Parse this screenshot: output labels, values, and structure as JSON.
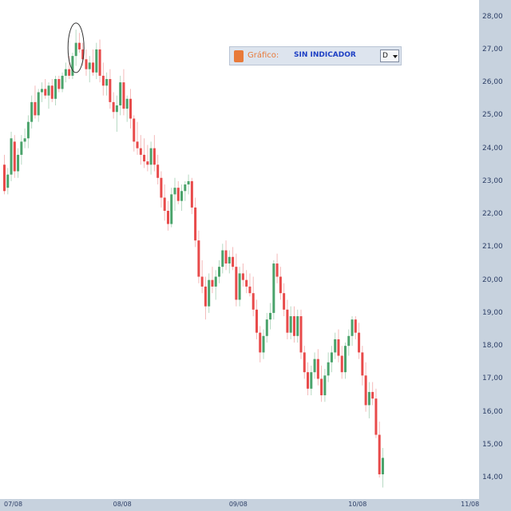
{
  "toolbar": {
    "label": "Gráfico:",
    "indicator": "SIN INDICADOR",
    "selected": "D"
  },
  "chart_data": {
    "type": "candlestick",
    "title": "",
    "xlabel": "",
    "ylabel": "",
    "ylim": [
      13.35,
      28.5
    ],
    "y_ticks": [
      "28,00",
      "27,00",
      "26,00",
      "25,00",
      "24,00",
      "23,00",
      "22,00",
      "21,00",
      "20,00",
      "19,00",
      "18,00",
      "17,00",
      "16,00",
      "15,00",
      "14,00"
    ],
    "x_ticks": [
      {
        "label": "07/08",
        "index": 0
      },
      {
        "label": "08/08",
        "index": 32
      },
      {
        "label": "09/08",
        "index": 66
      },
      {
        "label": "10/08",
        "index": 101
      },
      {
        "label": "11/08",
        "index": 134
      }
    ],
    "up_color": "#4aa36b",
    "down_color": "#e84a4a",
    "highlight": {
      "index": 21,
      "shape": "ellipse"
    },
    "candles": [
      [
        23.5,
        23.8,
        22.6,
        22.7
      ],
      [
        22.8,
        23.4,
        22.6,
        23.2
      ],
      [
        23.2,
        24.5,
        23.0,
        24.3
      ],
      [
        24.2,
        24.4,
        23.1,
        23.3
      ],
      [
        23.3,
        24.0,
        23.1,
        23.8
      ],
      [
        23.8,
        24.4,
        23.5,
        24.2
      ],
      [
        24.2,
        24.6,
        24.0,
        24.3
      ],
      [
        24.3,
        25.0,
        24.0,
        24.8
      ],
      [
        24.8,
        25.6,
        24.6,
        25.4
      ],
      [
        25.4,
        25.9,
        24.9,
        25.0
      ],
      [
        25.0,
        25.8,
        24.8,
        25.7
      ],
      [
        25.7,
        26.0,
        25.4,
        25.8
      ],
      [
        25.8,
        26.1,
        25.5,
        25.6
      ],
      [
        25.6,
        26.0,
        25.2,
        25.9
      ],
      [
        25.9,
        26.1,
        25.4,
        25.5
      ],
      [
        25.5,
        26.2,
        25.3,
        26.1
      ],
      [
        26.1,
        26.2,
        25.7,
        25.8
      ],
      [
        25.8,
        26.3,
        25.7,
        26.2
      ],
      [
        26.2,
        26.6,
        26.0,
        26.4
      ],
      [
        26.4,
        26.8,
        26.1,
        26.2
      ],
      [
        26.2,
        26.9,
        26.1,
        26.8
      ],
      [
        26.8,
        27.6,
        26.5,
        27.2
      ],
      [
        27.2,
        27.5,
        26.9,
        27.0
      ],
      [
        27.0,
        27.2,
        26.5,
        26.7
      ],
      [
        26.7,
        27.0,
        26.2,
        26.4
      ],
      [
        26.4,
        26.8,
        26.0,
        26.6
      ],
      [
        26.6,
        27.0,
        26.2,
        26.3
      ],
      [
        26.3,
        27.2,
        26.1,
        27.0
      ],
      [
        27.0,
        27.3,
        26.0,
        26.2
      ],
      [
        26.2,
        26.6,
        25.6,
        25.9
      ],
      [
        25.9,
        26.3,
        25.6,
        26.1
      ],
      [
        26.1,
        26.4,
        25.2,
        25.4
      ],
      [
        25.4,
        25.7,
        24.9,
        25.1
      ],
      [
        25.1,
        25.6,
        24.5,
        25.3
      ],
      [
        25.3,
        26.2,
        25.0,
        26.0
      ],
      [
        26.0,
        26.4,
        25.0,
        25.2
      ],
      [
        25.2,
        25.6,
        24.8,
        25.5
      ],
      [
        25.5,
        25.8,
        24.6,
        24.9
      ],
      [
        24.9,
        25.0,
        23.9,
        24.2
      ],
      [
        24.2,
        24.8,
        23.8,
        24.0
      ],
      [
        24.0,
        24.4,
        23.5,
        23.8
      ],
      [
        23.8,
        24.3,
        23.4,
        23.6
      ],
      [
        23.6,
        24.1,
        23.3,
        23.5
      ],
      [
        23.5,
        24.2,
        23.2,
        24.0
      ],
      [
        24.0,
        24.4,
        23.3,
        23.5
      ],
      [
        23.5,
        23.8,
        22.9,
        23.1
      ],
      [
        23.1,
        23.3,
        22.2,
        22.5
      ],
      [
        22.5,
        22.9,
        21.8,
        22.1
      ],
      [
        22.1,
        22.4,
        21.5,
        21.7
      ],
      [
        21.7,
        22.8,
        21.6,
        22.6
      ],
      [
        22.6,
        23.1,
        22.1,
        22.8
      ],
      [
        22.8,
        23.0,
        22.3,
        22.4
      ],
      [
        22.4,
        22.9,
        22.1,
        22.7
      ],
      [
        22.7,
        23.0,
        22.4,
        22.9
      ],
      [
        22.9,
        23.2,
        22.6,
        23.0
      ],
      [
        23.0,
        23.1,
        22.0,
        22.2
      ],
      [
        22.2,
        22.5,
        21.0,
        21.2
      ],
      [
        21.2,
        21.5,
        19.9,
        20.1
      ],
      [
        20.1,
        20.6,
        19.6,
        19.8
      ],
      [
        19.8,
        20.1,
        18.8,
        19.2
      ],
      [
        19.2,
        20.2,
        19.0,
        20.0
      ],
      [
        20.0,
        20.4,
        19.6,
        19.8
      ],
      [
        19.8,
        20.3,
        19.4,
        20.1
      ],
      [
        20.1,
        20.6,
        19.9,
        20.4
      ],
      [
        20.4,
        21.1,
        20.2,
        20.9
      ],
      [
        20.9,
        21.2,
        20.3,
        20.5
      ],
      [
        20.5,
        20.9,
        20.2,
        20.7
      ],
      [
        20.7,
        21.0,
        20.3,
        20.4
      ],
      [
        20.4,
        20.8,
        19.2,
        19.4
      ],
      [
        19.4,
        20.4,
        19.2,
        20.2
      ],
      [
        20.2,
        20.5,
        19.8,
        20.0
      ],
      [
        20.0,
        20.3,
        19.6,
        19.8
      ],
      [
        19.8,
        20.2,
        19.5,
        19.6
      ],
      [
        19.6,
        20.1,
        18.9,
        19.1
      ],
      [
        19.1,
        19.4,
        18.2,
        18.4
      ],
      [
        18.4,
        18.6,
        17.5,
        17.8
      ],
      [
        17.8,
        18.5,
        17.6,
        18.3
      ],
      [
        18.3,
        19.0,
        18.1,
        18.8
      ],
      [
        18.8,
        19.3,
        18.5,
        19.0
      ],
      [
        19.0,
        20.6,
        18.8,
        20.5
      ],
      [
        20.5,
        20.8,
        19.9,
        20.1
      ],
      [
        20.1,
        20.4,
        19.4,
        19.6
      ],
      [
        19.6,
        19.9,
        18.9,
        19.1
      ],
      [
        19.1,
        19.4,
        18.2,
        18.4
      ],
      [
        18.4,
        19.2,
        18.2,
        18.9
      ],
      [
        18.9,
        19.2,
        18.1,
        18.3
      ],
      [
        18.3,
        19.1,
        18.1,
        18.9
      ],
      [
        18.9,
        19.1,
        17.6,
        17.8
      ],
      [
        17.8,
        18.0,
        17.0,
        17.2
      ],
      [
        17.2,
        17.5,
        16.5,
        16.7
      ],
      [
        16.7,
        17.4,
        16.5,
        17.2
      ],
      [
        17.2,
        17.8,
        17.0,
        17.6
      ],
      [
        17.6,
        17.9,
        16.8,
        17.0
      ],
      [
        17.0,
        17.4,
        16.3,
        16.5
      ],
      [
        16.5,
        17.3,
        16.3,
        17.1
      ],
      [
        17.1,
        17.8,
        16.9,
        17.5
      ],
      [
        17.5,
        18.0,
        17.2,
        17.8
      ],
      [
        17.8,
        18.4,
        17.6,
        18.2
      ],
      [
        18.2,
        18.5,
        17.5,
        17.7
      ],
      [
        17.7,
        18.0,
        17.0,
        17.2
      ],
      [
        17.2,
        18.1,
        17.0,
        18.0
      ],
      [
        18.0,
        18.5,
        17.7,
        18.3
      ],
      [
        18.3,
        18.9,
        18.0,
        18.8
      ],
      [
        18.8,
        18.9,
        18.2,
        18.4
      ],
      [
        18.4,
        18.7,
        17.6,
        17.8
      ],
      [
        17.8,
        18.0,
        16.8,
        17.1
      ],
      [
        17.1,
        17.5,
        16.0,
        16.2
      ],
      [
        16.2,
        16.9,
        15.8,
        16.6
      ],
      [
        16.6,
        16.9,
        16.2,
        16.4
      ],
      [
        16.4,
        16.7,
        15.2,
        15.3
      ],
      [
        15.3,
        15.7,
        14.0,
        14.1
      ],
      [
        14.1,
        14.9,
        13.7,
        14.6
      ]
    ]
  }
}
